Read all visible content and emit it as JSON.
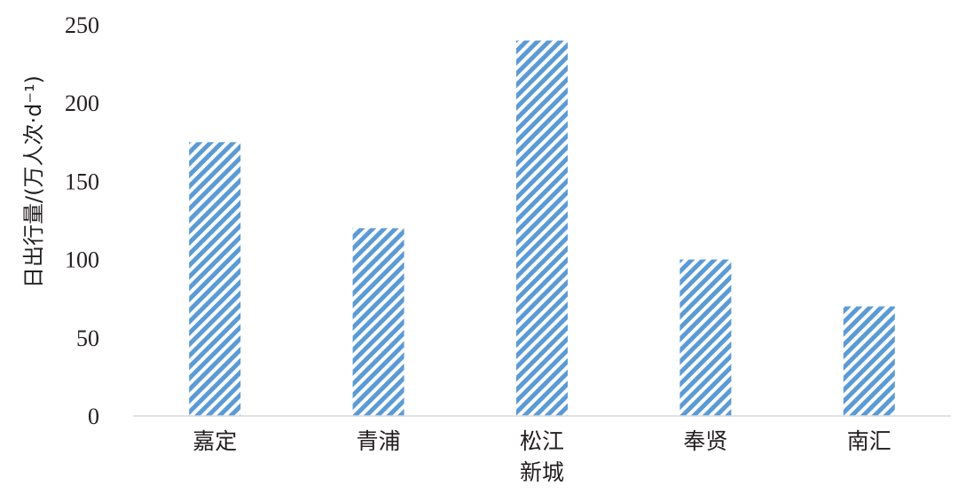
{
  "chart_data": {
    "type": "bar",
    "title": "",
    "xlabel": "",
    "ylabel": "日出行量/(万人次·d⁻¹)",
    "categories": [
      "嘉定",
      "青浦",
      "松江\n新城",
      "奉贤",
      "南汇"
    ],
    "values": [
      175,
      120,
      240,
      100,
      70
    ],
    "ylim": [
      0,
      250
    ],
    "yticks": [
      0,
      50,
      100,
      150,
      200,
      250
    ],
    "grid": false,
    "legend": "none",
    "bar_fill": "diagonal-hatch",
    "bar_color": "#5b9bd5"
  }
}
